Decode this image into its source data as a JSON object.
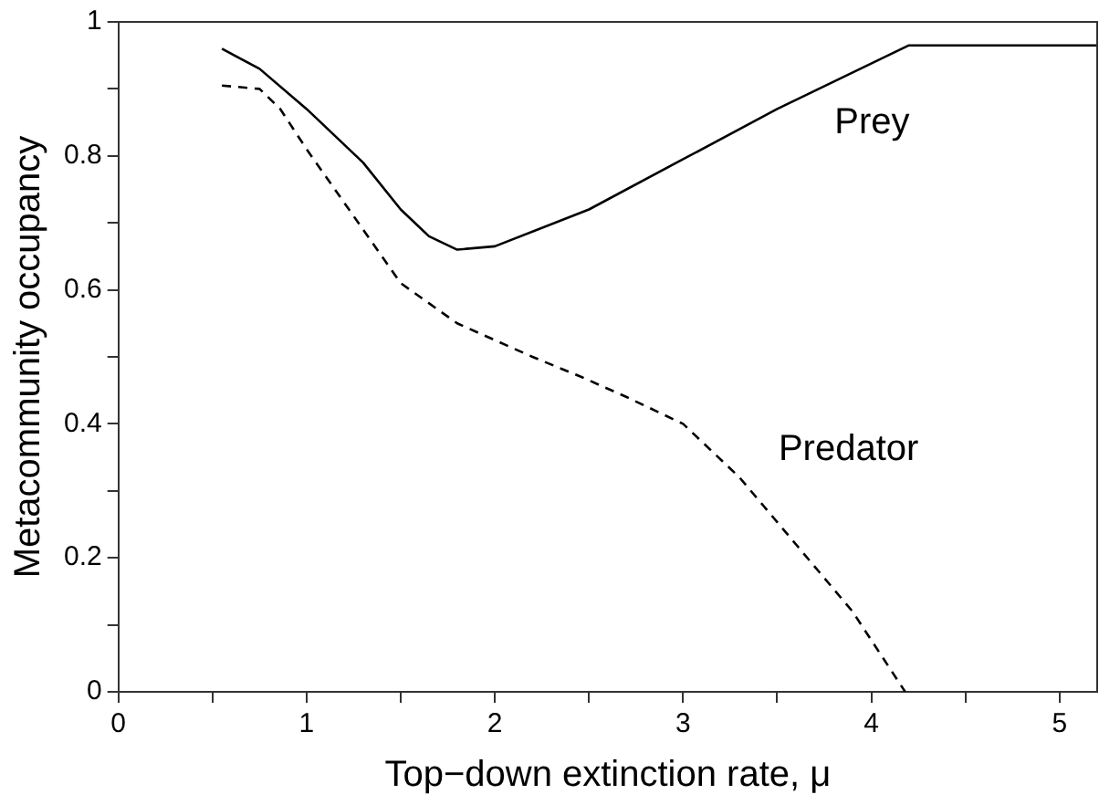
{
  "chart_data": {
    "type": "line",
    "xlabel": "Top−down extinction rate, μ",
    "ylabel": "Metacommunity occupancy",
    "xlim": [
      0,
      5.2
    ],
    "xticks": [
      0,
      {
        "value": 0.5,
        "label": null
      },
      1,
      {
        "value": 1.5,
        "label": null
      },
      2,
      {
        "value": 2.5,
        "label": null
      },
      3,
      {
        "value": 3.5,
        "label": null
      },
      4,
      {
        "value": 4.5,
        "label": null
      },
      5
    ],
    "ylim": [
      0,
      1
    ],
    "yticks": [
      0,
      {
        "value": 0.1,
        "label": null
      },
      0.2,
      {
        "value": 0.3,
        "label": null
      },
      0.4,
      {
        "value": 0.5,
        "label": null
      },
      0.6,
      {
        "value": 0.7,
        "label": null
      },
      0.8,
      {
        "value": 0.9,
        "label": null
      },
      1
    ],
    "grid": false,
    "legend": false,
    "marker": "none",
    "series": [
      {
        "name": "Prey",
        "color": "#000000",
        "line_style": "solid",
        "x": [
          0.55,
          0.75,
          1.0,
          1.3,
          1.5,
          1.65,
          1.8,
          2.0,
          2.5,
          3.0,
          3.5,
          4.2,
          5.2
        ],
        "values": [
          0.96,
          0.93,
          0.87,
          0.79,
          0.72,
          0.68,
          0.66,
          0.665,
          0.72,
          0.795,
          0.87,
          0.965,
          0.965
        ]
      },
      {
        "name": "Predator",
        "color": "#000000",
        "line_style": "dashed",
        "x": [
          0.55,
          0.75,
          0.86,
          1.0,
          1.2,
          1.5,
          1.8,
          2.2,
          2.46,
          2.7,
          3.0,
          3.3,
          3.6,
          3.9,
          4.18
        ],
        "values": [
          0.905,
          0.9,
          0.87,
          0.81,
          0.73,
          0.61,
          0.55,
          0.5,
          0.47,
          0.44,
          0.4,
          0.32,
          0.22,
          0.12,
          0.0
        ]
      }
    ]
  }
}
